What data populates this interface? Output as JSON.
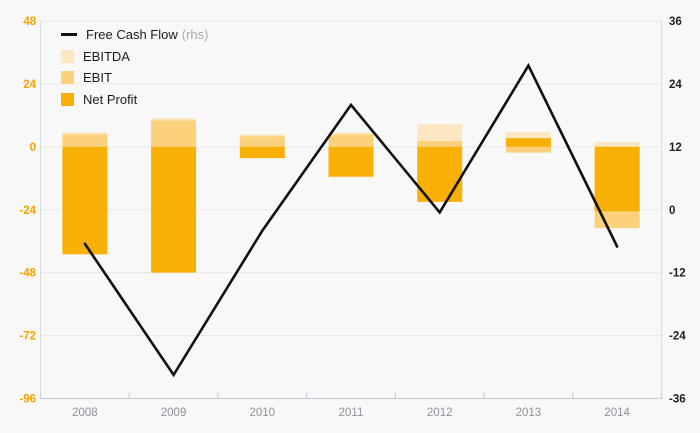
{
  "chart_data": {
    "type": "combo",
    "title": "",
    "categories": [
      "2008",
      "2009",
      "2010",
      "2011",
      "2012",
      "2013",
      "2014"
    ],
    "series": [
      {
        "name": "Free Cash Flow",
        "kind": "line",
        "axis": "right",
        "color": "#111111",
        "values": [
          -6.5,
          -31.5,
          -4,
          20,
          -0.5,
          27.5,
          -7
        ]
      },
      {
        "name": "EBITDA",
        "kind": "bar",
        "axis": "left",
        "color": "#fce7c0",
        "values": [
          5.5,
          11,
          4.8,
          5.5,
          8.6,
          5.5,
          1.8
        ]
      },
      {
        "name": "EBIT",
        "kind": "bar",
        "axis": "left",
        "color": "#fbd27b",
        "values": [
          4.7,
          10,
          4,
          4.7,
          2.2,
          -2.2,
          -31
        ]
      },
      {
        "name": "Net Profit",
        "kind": "bar",
        "axis": "left",
        "color": "#f9b005",
        "values": [
          -41,
          -48,
          -4.3,
          -11.4,
          -21,
          3.3,
          -24.6
        ]
      }
    ],
    "left_axis": {
      "ticks": [
        48,
        24,
        0,
        -24,
        -48,
        -72,
        -96
      ],
      "max": 48,
      "min": -96,
      "color": "#f5a300"
    },
    "right_axis": {
      "ticks": [
        36,
        24,
        12,
        0,
        -12,
        -24,
        -36
      ],
      "max": 36,
      "min": -36,
      "color": "#1f1f1f"
    },
    "x_axis": {
      "label_color": "#8d929c",
      "line_color": "#c6ceda"
    },
    "grid": {
      "color": "#e9e9e9",
      "horizontal": true,
      "vertical": false
    },
    "background": "#f8f8f8",
    "legend": {
      "position": "top-left",
      "rhs_suffix": "(rhs)"
    }
  }
}
